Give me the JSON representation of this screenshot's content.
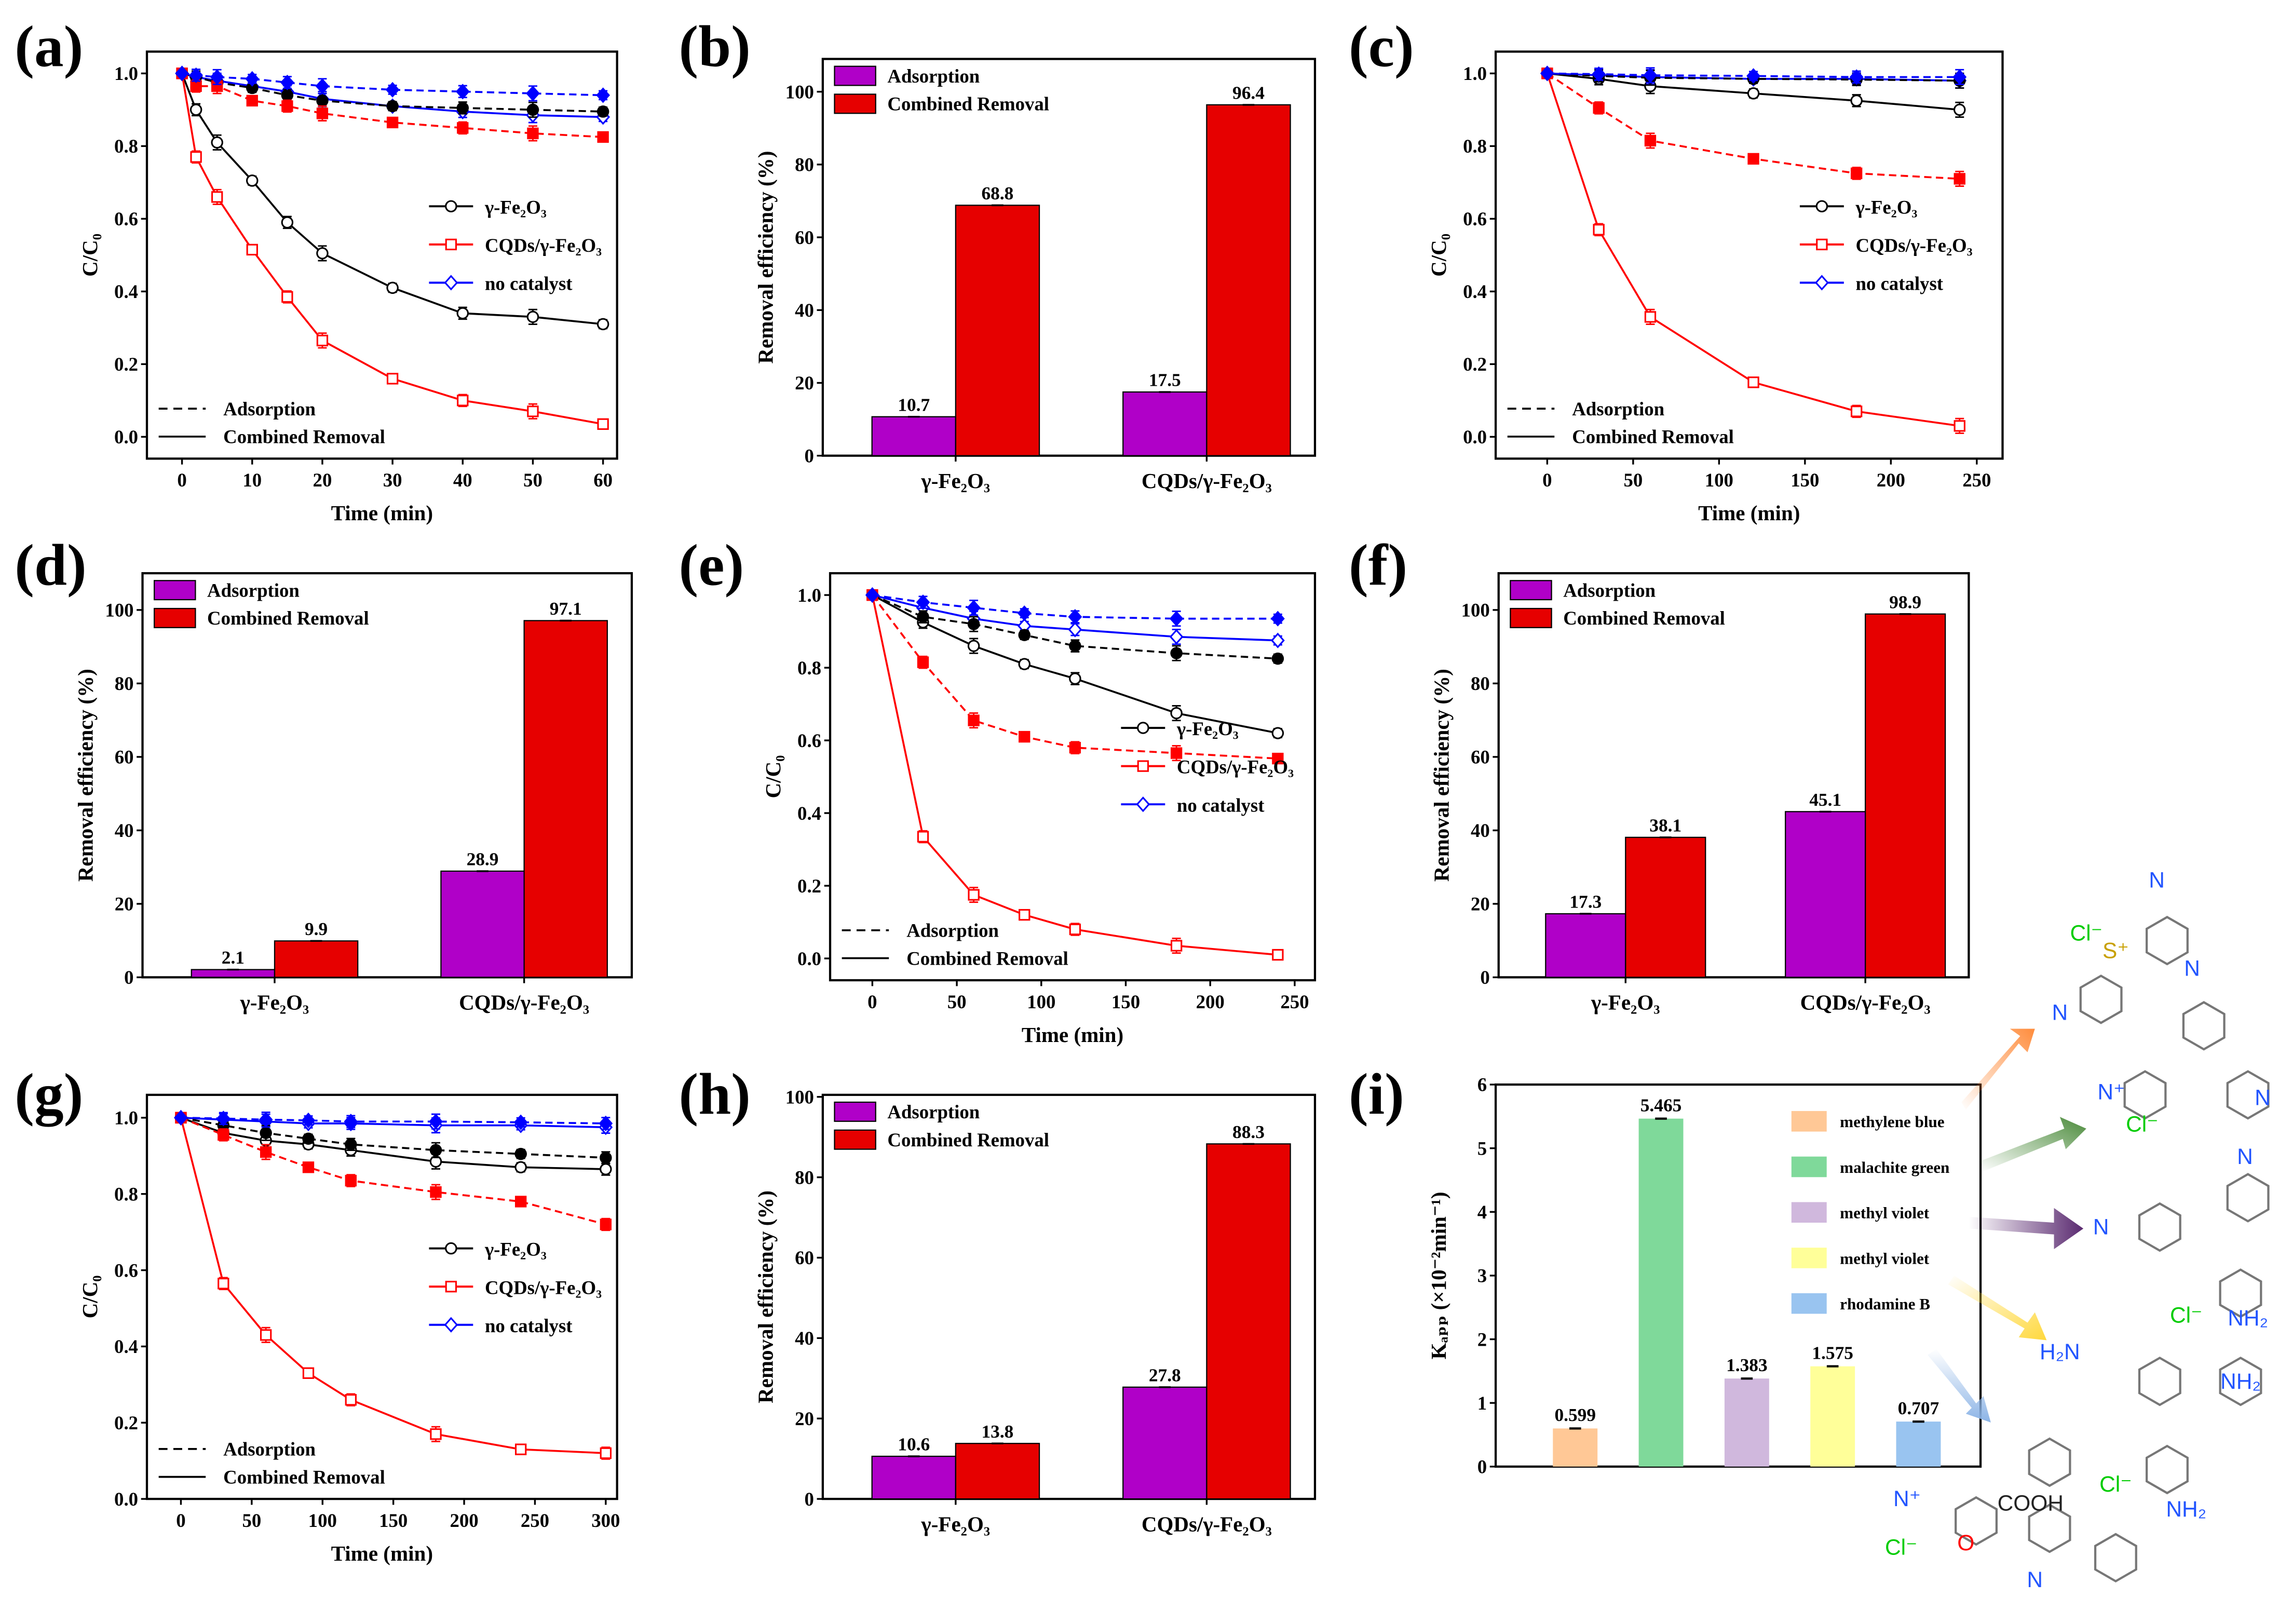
{
  "panel_labels": [
    "(a)",
    "(b)",
    "(c)",
    "(d)",
    "(e)",
    "(f)",
    "(g)",
    "(h)",
    "(i)"
  ],
  "colors": {
    "gamma": "#000000",
    "cqd": "#ff0000",
    "none": "#0000ff",
    "adsorption_bar": "#b000c8",
    "combined_bar": "#e60000"
  },
  "line_style_legend": {
    "dashed": "Adsorption",
    "solid": "Combined Removal"
  },
  "chart_data": [
    {
      "panel": "(a)",
      "type": "line",
      "xlabel": "Time (min)",
      "ylabel": "C/C₀",
      "xlim": [
        -5,
        62
      ],
      "ylim": [
        -0.06,
        1.06
      ],
      "xticks": [
        0,
        10,
        20,
        30,
        40,
        50,
        60
      ],
      "yticks": [
        0.0,
        0.2,
        0.4,
        0.6,
        0.8,
        1.0
      ],
      "x": [
        0,
        2,
        5,
        10,
        15,
        20,
        30,
        40,
        50,
        60
      ],
      "series": [
        {
          "name": "γ-Fe₂O₃",
          "mode": "Combined Removal",
          "color": "#000000",
          "marker": "circle",
          "values": [
            1,
            0.9,
            0.81,
            0.705,
            0.59,
            0.505,
            0.41,
            0.34,
            0.33,
            0.31
          ]
        },
        {
          "name": "CQDs/γ-Fe₂O₃",
          "mode": "Combined Removal",
          "color": "#ff0000",
          "marker": "square",
          "values": [
            1,
            0.77,
            0.66,
            0.515,
            0.385,
            0.265,
            0.16,
            0.1,
            0.07,
            0.035
          ]
        },
        {
          "name": "no catalyst",
          "mode": "Combined Removal",
          "color": "#0000ff",
          "marker": "diamond",
          "values": [
            1,
            0.99,
            0.98,
            0.965,
            0.95,
            0.93,
            0.91,
            0.895,
            0.885,
            0.88
          ]
        },
        {
          "name": "γ-Fe₂O₃",
          "mode": "Adsorption",
          "color": "#000000",
          "marker": "circle",
          "values": [
            1,
            0.99,
            0.975,
            0.96,
            0.94,
            0.925,
            0.91,
            0.905,
            0.9,
            0.895
          ]
        },
        {
          "name": "CQDs/γ-Fe₂O₃",
          "mode": "Adsorption",
          "color": "#ff0000",
          "marker": "square",
          "values": [
            1,
            0.965,
            0.965,
            0.925,
            0.91,
            0.89,
            0.865,
            0.85,
            0.835,
            0.825
          ]
        },
        {
          "name": "no catalyst",
          "mode": "Adsorption",
          "color": "#0000ff",
          "marker": "diamond",
          "values": [
            1,
            0.995,
            0.99,
            0.985,
            0.975,
            0.965,
            0.955,
            0.95,
            0.945,
            0.94
          ]
        }
      ],
      "legend": "right-middle"
    },
    {
      "panel": "(b)",
      "type": "bar",
      "ylabel": "Removal efficiency (%)",
      "ylim": [
        0,
        109
      ],
      "yticks": [
        0,
        20,
        40,
        60,
        80,
        100
      ],
      "categories": [
        "γ-Fe₂O₃",
        "CQDs/γ-Fe₂O₃"
      ],
      "series": [
        {
          "name": "Adsorption",
          "color": "#b000c8",
          "values": [
            10.7,
            17.5
          ],
          "labels": [
            "10.7",
            "17.5"
          ]
        },
        {
          "name": "Combined Removal",
          "color": "#e60000",
          "values": [
            68.8,
            96.4
          ],
          "labels": [
            "68.8",
            "96.4"
          ]
        }
      ],
      "legend": "top-left"
    },
    {
      "panel": "(c)",
      "type": "line",
      "xlabel": "Time (min)",
      "ylabel": "C/C₀",
      "xlim": [
        -30,
        265
      ],
      "ylim": [
        -0.06,
        1.06
      ],
      "xticks": [
        0,
        50,
        100,
        150,
        200,
        250
      ],
      "yticks": [
        0.0,
        0.2,
        0.4,
        0.6,
        0.8,
        1.0
      ],
      "x": [
        0,
        30,
        60,
        120,
        180,
        240
      ],
      "series": [
        {
          "name": "γ-Fe₂O₃",
          "mode": "Combined Removal",
          "color": "#000000",
          "marker": "circle",
          "values": [
            1,
            0.985,
            0.965,
            0.945,
            0.925,
            0.9
          ]
        },
        {
          "name": "CQDs/γ-Fe₂O₃",
          "mode": "Combined Removal",
          "color": "#ff0000",
          "marker": "square",
          "values": [
            1,
            0.57,
            0.33,
            0.15,
            0.07,
            0.03
          ]
        },
        {
          "name": "no catalyst",
          "mode": "Combined Removal",
          "color": "#0000ff",
          "marker": "diamond",
          "values": [
            1,
            0.995,
            0.99,
            0.985,
            0.985,
            0.98
          ]
        },
        {
          "name": "γ-Fe₂O₃",
          "mode": "Adsorption",
          "color": "#000000",
          "marker": "circle",
          "values": [
            1,
            0.993,
            0.988,
            0.985,
            0.983,
            0.98
          ]
        },
        {
          "name": "CQDs/γ-Fe₂O₃",
          "mode": "Adsorption",
          "color": "#ff0000",
          "marker": "square",
          "values": [
            1,
            0.905,
            0.815,
            0.765,
            0.725,
            0.71
          ]
        },
        {
          "name": "no catalyst",
          "mode": "Adsorption",
          "color": "#0000ff",
          "marker": "diamond",
          "values": [
            1,
            0.998,
            0.995,
            0.993,
            0.99,
            0.99
          ]
        }
      ],
      "legend": "right-middle"
    },
    {
      "panel": "(d)",
      "type": "bar",
      "ylabel": "Removal efficiency (%)",
      "ylim": [
        0,
        110
      ],
      "yticks": [
        0,
        20,
        40,
        60,
        80,
        100
      ],
      "categories": [
        "γ-Fe₂O₃",
        "CQDs/γ-Fe₂O₃"
      ],
      "series": [
        {
          "name": "Adsorption",
          "color": "#b000c8",
          "values": [
            2.1,
            28.9
          ],
          "labels": [
            "2.1",
            "28.9"
          ]
        },
        {
          "name": "Combined Removal",
          "color": "#e60000",
          "values": [
            9.9,
            97.1
          ],
          "labels": [
            "9.9",
            "97.1"
          ]
        }
      ],
      "legend": "top-left"
    },
    {
      "panel": "(e)",
      "type": "line",
      "xlabel": "Time (min)",
      "ylabel": "C/C₀",
      "xlim": [
        -25,
        262
      ],
      "ylim": [
        -0.06,
        1.06
      ],
      "xticks": [
        0,
        50,
        100,
        150,
        200,
        250
      ],
      "yticks": [
        0.0,
        0.2,
        0.4,
        0.6,
        0.8,
        1.0
      ],
      "x": [
        0,
        30,
        60,
        90,
        120,
        180,
        240
      ],
      "series": [
        {
          "name": "γ-Fe₂O₃",
          "mode": "Combined Removal",
          "color": "#000000",
          "marker": "circle",
          "values": [
            1,
            0.925,
            0.86,
            0.81,
            0.77,
            0.675,
            0.62
          ]
        },
        {
          "name": "CQDs/γ-Fe₂O₃",
          "mode": "Combined Removal",
          "color": "#ff0000",
          "marker": "square",
          "values": [
            1,
            0.335,
            0.175,
            0.12,
            0.08,
            0.035,
            0.01
          ]
        },
        {
          "name": "no catalyst",
          "mode": "Combined Removal",
          "color": "#0000ff",
          "marker": "diamond",
          "values": [
            1,
            0.965,
            0.935,
            0.915,
            0.905,
            0.885,
            0.875
          ]
        },
        {
          "name": "γ-Fe₂O₃",
          "mode": "Adsorption",
          "color": "#000000",
          "marker": "circle",
          "values": [
            1,
            0.94,
            0.92,
            0.89,
            0.86,
            0.84,
            0.825
          ]
        },
        {
          "name": "CQDs/γ-Fe₂O₃",
          "mode": "Adsorption",
          "color": "#ff0000",
          "marker": "square",
          "values": [
            1,
            0.815,
            0.655,
            0.61,
            0.58,
            0.565,
            0.55
          ]
        },
        {
          "name": "no catalyst",
          "mode": "Adsorption",
          "color": "#0000ff",
          "marker": "diamond",
          "values": [
            1,
            0.98,
            0.965,
            0.95,
            0.94,
            0.935,
            0.935
          ]
        }
      ],
      "legend": "right-middle"
    },
    {
      "panel": "(f)",
      "type": "bar",
      "ylabel": "Removal efficiency (%)",
      "ylim": [
        0,
        110
      ],
      "yticks": [
        0,
        20,
        40,
        60,
        80,
        100
      ],
      "categories": [
        "γ-Fe₂O₃",
        "CQDs/γ-Fe₂O₃"
      ],
      "series": [
        {
          "name": "Adsorption",
          "color": "#b000c8",
          "values": [
            17.3,
            45.1
          ],
          "labels": [
            "17.3",
            "45.1"
          ]
        },
        {
          "name": "Combined Removal",
          "color": "#e60000",
          "values": [
            38.1,
            98.9
          ],
          "labels": [
            "38.1",
            "98.9"
          ]
        }
      ],
      "legend": "top-left"
    },
    {
      "panel": "(g)",
      "type": "line",
      "xlabel": "Time (min)",
      "ylabel": "C/C₀",
      "xlim": [
        -24,
        308
      ],
      "ylim": [
        0,
        1.06
      ],
      "xticks": [
        0,
        50,
        100,
        150,
        200,
        250,
        300
      ],
      "yticks": [
        0.0,
        0.2,
        0.4,
        0.6,
        0.8,
        1.0
      ],
      "x": [
        0,
        30,
        60,
        90,
        120,
        180,
        240,
        300
      ],
      "series": [
        {
          "name": "γ-Fe₂O₃",
          "mode": "Combined Removal",
          "color": "#000000",
          "marker": "circle",
          "values": [
            1,
            0.96,
            0.94,
            0.93,
            0.915,
            0.885,
            0.87,
            0.865
          ]
        },
        {
          "name": "CQDs/γ-Fe₂O₃",
          "mode": "Combined Removal",
          "color": "#ff0000",
          "marker": "square",
          "values": [
            1,
            0.565,
            0.43,
            0.33,
            0.26,
            0.17,
            0.13,
            0.12
          ]
        },
        {
          "name": "no catalyst",
          "mode": "Combined Removal",
          "color": "#0000ff",
          "marker": "diamond",
          "values": [
            1,
            0.995,
            0.99,
            0.985,
            0.985,
            0.98,
            0.98,
            0.975
          ]
        },
        {
          "name": "γ-Fe₂O₃",
          "mode": "Adsorption",
          "color": "#000000",
          "marker": "circle",
          "values": [
            1,
            0.98,
            0.96,
            0.945,
            0.93,
            0.915,
            0.905,
            0.895
          ]
        },
        {
          "name": "CQDs/γ-Fe₂O₃",
          "mode": "Adsorption",
          "color": "#ff0000",
          "marker": "square",
          "values": [
            1,
            0.955,
            0.91,
            0.87,
            0.835,
            0.805,
            0.78,
            0.72
          ]
        },
        {
          "name": "no catalyst",
          "mode": "Adsorption",
          "color": "#0000ff",
          "marker": "diamond",
          "values": [
            1,
            0.998,
            0.995,
            0.993,
            0.99,
            0.99,
            0.988,
            0.985
          ]
        }
      ],
      "legend": "right-middle"
    },
    {
      "panel": "(h)",
      "type": "bar",
      "ylabel": "Removal efficiency (%)",
      "ylim": [
        0,
        100.5
      ],
      "yticks": [
        0,
        20,
        40,
        60,
        80,
        100
      ],
      "categories": [
        "γ-Fe₂O₃",
        "CQDs/γ-Fe₂O₃"
      ],
      "series": [
        {
          "name": "Adsorption",
          "color": "#b000c8",
          "values": [
            10.6,
            27.8
          ],
          "labels": [
            "10.6",
            "27.8"
          ]
        },
        {
          "name": "Combined Removal",
          "color": "#e60000",
          "values": [
            13.8,
            88.3
          ],
          "labels": [
            "13.8",
            "88.3"
          ]
        }
      ],
      "legend": "top-left"
    },
    {
      "panel": "(i)",
      "type": "bar",
      "ylabel": "Kₐₚₚ (×10⁻²min⁻¹)",
      "ylim": [
        0,
        6
      ],
      "yticks": [
        0,
        1,
        2,
        3,
        4,
        5,
        6
      ],
      "categories": [
        "methylene blue",
        "malachite green",
        "methyl violet",
        "methyl violet",
        "rhodamine B"
      ],
      "values": [
        0.599,
        5.465,
        1.383,
        1.575,
        0.707
      ],
      "labels": [
        "0.599",
        "5.465",
        "1.383",
        "1.575",
        "0.707"
      ],
      "colors": [
        "#ffc896",
        "#7fd99a",
        "#d0b8dd",
        "#ffff99",
        "#99c4f0"
      ],
      "legend": "top-right"
    }
  ],
  "structure_labels": {
    "chloride": "Cl⁻",
    "n": "N",
    "n_plus": "N⁺",
    "s_plus": "S⁺",
    "o": "O",
    "cooh": "COOH",
    "nh2": "NH₂",
    "h2n": "H₂N"
  }
}
